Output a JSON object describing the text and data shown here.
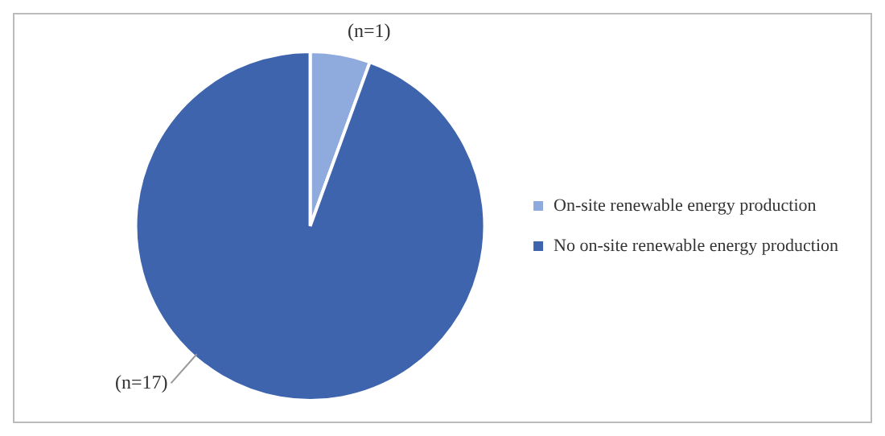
{
  "chart_data": {
    "type": "pie",
    "categories": [
      "On-site renewable energy production",
      "No on-site renewable energy production"
    ],
    "values": [
      1,
      17
    ],
    "value_labels": [
      "(n=1)",
      "(n=17)"
    ],
    "colors": [
      "#8faadc",
      "#3d64ad"
    ],
    "legend": "right"
  }
}
